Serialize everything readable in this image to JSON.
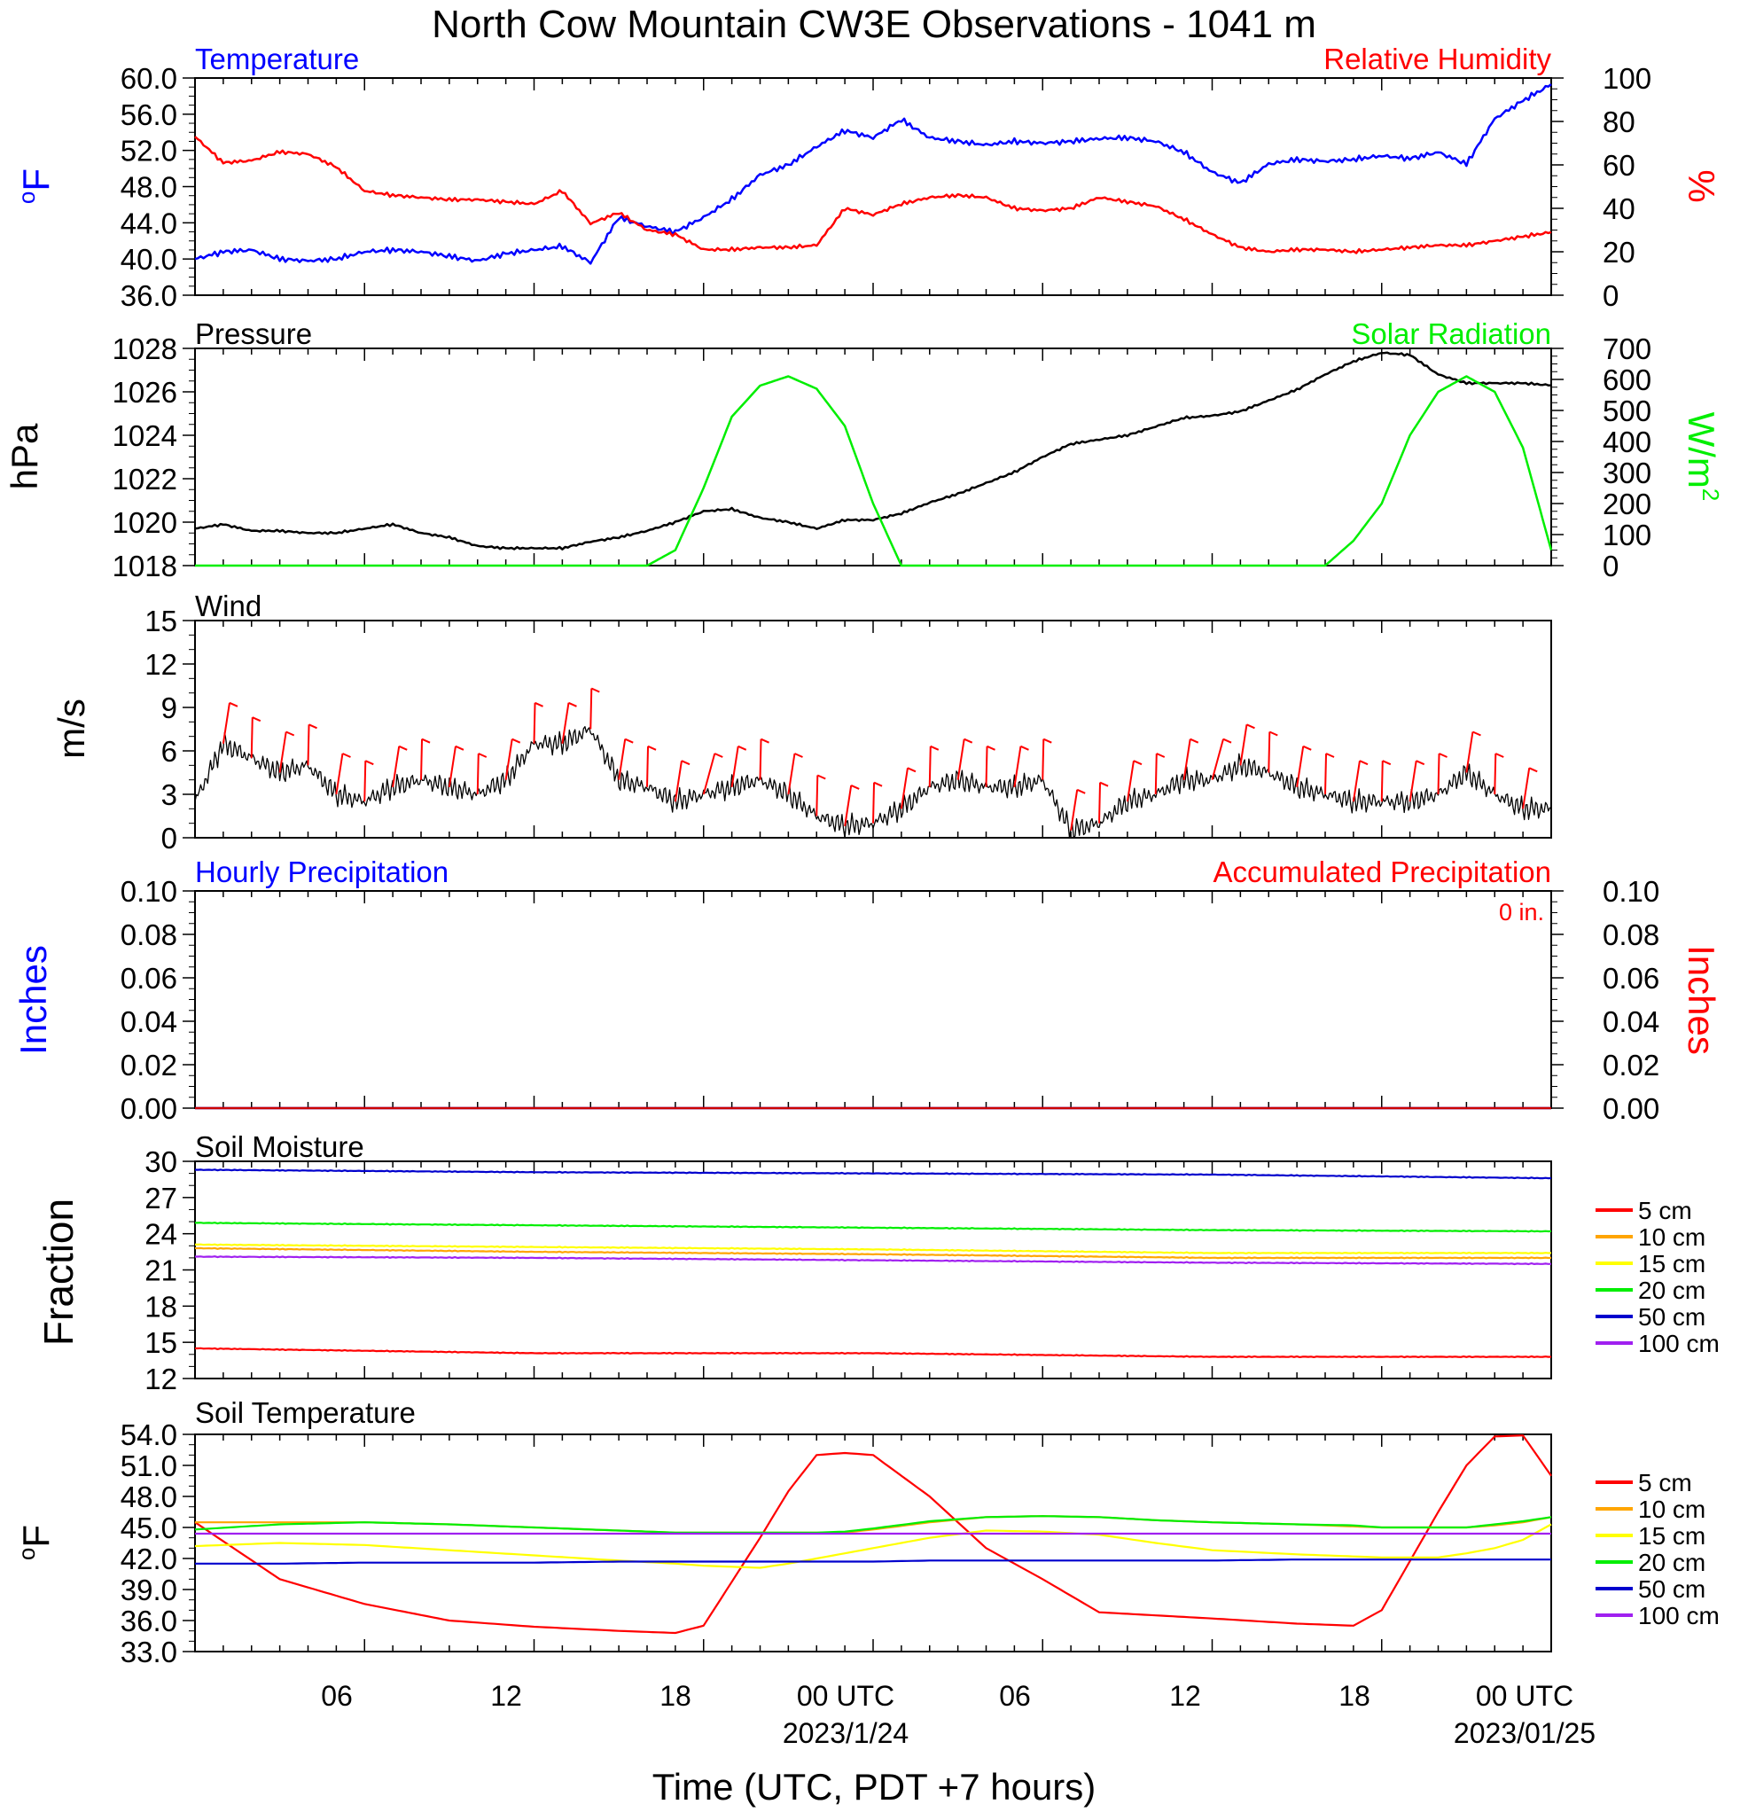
{
  "title": "North Cow Mountain CW3E Observations - 1041 m",
  "x_axis": {
    "label": "Time (UTC, PDT +7 hours)",
    "ticks": [
      "06",
      "12",
      "18",
      "00 UTC",
      "06",
      "12",
      "18",
      "00 UTC"
    ],
    "dates": [
      "2023/1/24",
      "2023/01/25"
    ]
  },
  "colors": {
    "blue": "#0000ff",
    "red": "#ff0000",
    "green": "#00ee00",
    "black": "#000000",
    "orange": "#ffa500",
    "yellow": "#ffff00",
    "purple": "#a020f0",
    "navy": "#0000cd"
  },
  "panels": {
    "temp_rh": {
      "title_left": "Temperature",
      "title_right": "Relative Humidity",
      "ylabel_left": "oF",
      "ylabel_right": "%",
      "left_ticks": [
        "60.0",
        "56.0",
        "52.0",
        "48.0",
        "44.0",
        "40.0",
        "36.0"
      ],
      "right_ticks": [
        "100",
        "80",
        "60",
        "40",
        "20",
        "0"
      ]
    },
    "pressure_solar": {
      "title_left": "Pressure",
      "title_right": "Solar Radiation",
      "ylabel_left": "hPa",
      "ylabel_right": "W/m2",
      "left_ticks": [
        "1028",
        "1026",
        "1024",
        "1022",
        "1020",
        "1018"
      ],
      "right_ticks": [
        "700",
        "600",
        "500",
        "400",
        "300",
        "200",
        "100",
        "0"
      ]
    },
    "wind": {
      "title_left": "Wind",
      "ylabel_left": "m/s",
      "left_ticks": [
        "15",
        "12",
        "9",
        "6",
        "3",
        "0"
      ]
    },
    "precip": {
      "title_left": "Hourly Precipitation",
      "title_right": "Accumulated Precipitation",
      "annotation": "0 in.",
      "ylabel_left": "Inches",
      "ylabel_right": "Inches",
      "left_ticks": [
        "0.10",
        "0.08",
        "0.06",
        "0.04",
        "0.02",
        "0.00"
      ],
      "right_ticks": [
        "0.10",
        "0.08",
        "0.06",
        "0.04",
        "0.02",
        "0.00"
      ]
    },
    "soil_moisture": {
      "title_left": "Soil Moisture",
      "ylabel_left": "Fraction",
      "left_ticks": [
        "30",
        "27",
        "24",
        "21",
        "18",
        "15",
        "12"
      ],
      "legend": [
        "5 cm",
        "10 cm",
        "15 cm",
        "20 cm",
        "50 cm",
        "100 cm"
      ]
    },
    "soil_temp": {
      "title_left": "Soil Temperature",
      "ylabel_left": "oF",
      "left_ticks": [
        "54.0",
        "51.0",
        "48.0",
        "45.0",
        "42.0",
        "39.0",
        "36.0",
        "33.0"
      ],
      "legend": [
        "5 cm",
        "10 cm",
        "15 cm",
        "20 cm",
        "50 cm",
        "100 cm"
      ]
    }
  },
  "chart_data": [
    {
      "type": "line",
      "title": "Temperature / Relative Humidity",
      "x_hours": [
        0,
        1,
        2,
        3,
        4,
        5,
        6,
        7,
        8,
        9,
        10,
        11,
        12,
        13,
        14,
        15,
        16,
        17,
        18,
        19,
        20,
        21,
        22,
        23,
        24,
        25,
        26,
        27,
        28,
        29,
        30,
        31,
        32,
        33,
        34,
        35,
        36,
        37,
        38,
        39,
        40,
        41,
        42,
        43,
        44,
        45,
        46,
        47,
        48
      ],
      "ylim_left": [
        36,
        60
      ],
      "ylim_right": [
        0,
        100
      ],
      "series": [
        {
          "name": "Temperature",
          "axis": "left",
          "unit": "F",
          "values": [
            40.0,
            40.8,
            41.0,
            40.0,
            39.8,
            40.0,
            40.8,
            41.0,
            40.8,
            40.3,
            39.8,
            40.6,
            41.0,
            41.4,
            39.6,
            44.6,
            43.6,
            43.0,
            44.6,
            46.6,
            49.3,
            50.4,
            52.4,
            54.2,
            53.4,
            55.4,
            53.4,
            53.0,
            52.6,
            53.0,
            52.8,
            53.0,
            53.3,
            53.4,
            53.0,
            51.8,
            49.6,
            48.4,
            50.5,
            51.0,
            50.8,
            51.0,
            51.4,
            51.1,
            51.8,
            50.5,
            55.5,
            57.5,
            59.3
          ]
        },
        {
          "name": "Relative Humidity",
          "axis": "right",
          "unit": "%",
          "values": [
            73,
            61,
            62,
            66,
            65,
            59,
            48,
            46,
            45,
            44,
            44,
            43,
            42,
            48,
            33,
            38,
            30,
            28,
            21,
            21,
            22,
            22,
            23,
            40,
            37,
            42,
            45,
            46,
            45,
            40,
            39,
            40,
            45,
            43,
            41,
            35,
            28,
            22,
            20,
            21,
            21,
            20,
            21,
            22,
            23,
            23,
            25,
            27,
            29
          ]
        }
      ]
    },
    {
      "type": "line",
      "title": "Pressure / Solar Radiation",
      "x_hours": [
        0,
        1,
        2,
        3,
        4,
        5,
        6,
        7,
        8,
        9,
        10,
        11,
        12,
        13,
        14,
        15,
        16,
        17,
        18,
        19,
        20,
        21,
        22,
        23,
        24,
        25,
        26,
        27,
        28,
        29,
        30,
        31,
        32,
        33,
        34,
        35,
        36,
        37,
        38,
        39,
        40,
        41,
        42,
        43,
        44,
        45,
        46,
        47,
        48
      ],
      "ylim_left": [
        1018,
        1028
      ],
      "ylim_right": [
        0,
        700
      ],
      "series": [
        {
          "name": "Pressure",
          "axis": "left",
          "unit": "hPa",
          "values": [
            1019.7,
            1019.9,
            1019.6,
            1019.6,
            1019.5,
            1019.5,
            1019.7,
            1019.9,
            1019.5,
            1019.3,
            1018.9,
            1018.8,
            1018.8,
            1018.8,
            1019.1,
            1019.3,
            1019.6,
            1020.0,
            1020.5,
            1020.6,
            1020.2,
            1020.0,
            1019.7,
            1020.1,
            1020.1,
            1020.4,
            1020.9,
            1021.3,
            1021.8,
            1022.3,
            1023.0,
            1023.6,
            1023.8,
            1024.0,
            1024.4,
            1024.8,
            1024.9,
            1025.1,
            1025.6,
            1026.1,
            1026.8,
            1027.4,
            1027.8,
            1027.7,
            1026.8,
            1026.4,
            1026.4,
            1026.4,
            1026.3
          ]
        },
        {
          "name": "Solar Radiation",
          "axis": "right",
          "unit": "W/m2",
          "values": [
            0,
            0,
            0,
            0,
            0,
            0,
            0,
            0,
            0,
            0,
            0,
            0,
            0,
            0,
            0,
            0,
            0,
            50,
            250,
            480,
            580,
            610,
            570,
            450,
            200,
            0,
            0,
            0,
            0,
            0,
            0,
            0,
            0,
            0,
            0,
            0,
            0,
            0,
            0,
            0,
            0,
            80,
            200,
            420,
            560,
            610,
            560,
            380,
            50
          ]
        }
      ]
    },
    {
      "type": "line",
      "title": "Wind",
      "x_hours": [
        0,
        1,
        2,
        3,
        4,
        5,
        6,
        7,
        8,
        9,
        10,
        11,
        12,
        13,
        14,
        15,
        16,
        17,
        18,
        19,
        20,
        21,
        22,
        23,
        24,
        25,
        26,
        27,
        28,
        29,
        30,
        31,
        32,
        33,
        34,
        35,
        36,
        37,
        38,
        39,
        40,
        41,
        42,
        43,
        44,
        45,
        46,
        47,
        48
      ],
      "ylim": [
        0,
        15
      ],
      "series": [
        {
          "name": "Wind speed",
          "unit": "m/s",
          "values": [
            2.5,
            6.5,
            5.5,
            4.5,
            5.0,
            3.0,
            2.5,
            3.5,
            4.0,
            3.5,
            3.0,
            4.0,
            6.5,
            6.5,
            7.5,
            4.0,
            3.5,
            2.5,
            3.0,
            3.5,
            4.0,
            3.0,
            1.5,
            0.8,
            1.0,
            2.0,
            3.5,
            4.0,
            3.5,
            3.5,
            4.0,
            0.5,
            1.0,
            2.5,
            3.0,
            4.0,
            4.0,
            5.0,
            4.5,
            3.5,
            3.0,
            2.5,
            2.5,
            2.5,
            3.0,
            4.5,
            3.0,
            2.0,
            2.0
          ]
        }
      ]
    },
    {
      "type": "line",
      "title": "Hourly / Accumulated Precipitation",
      "x_hours": [
        0,
        48
      ],
      "ylim": [
        0,
        0.1
      ],
      "series": [
        {
          "name": "Hourly Precipitation",
          "unit": "in",
          "values": [
            0,
            0
          ]
        },
        {
          "name": "Accumulated Precipitation",
          "unit": "in",
          "values": [
            0,
            0
          ]
        }
      ]
    },
    {
      "type": "line",
      "title": "Soil Moisture",
      "x_hours": [
        0,
        12,
        24,
        36,
        48
      ],
      "ylim": [
        12,
        30
      ],
      "series": [
        {
          "name": "5 cm",
          "values": [
            14.5,
            14.1,
            14.1,
            13.8,
            13.8
          ]
        },
        {
          "name": "10 cm",
          "values": [
            22.8,
            22.5,
            22.3,
            22.0,
            22.0
          ]
        },
        {
          "name": "15 cm",
          "values": [
            23.1,
            22.9,
            22.7,
            22.4,
            22.4
          ]
        },
        {
          "name": "20 cm",
          "values": [
            24.9,
            24.7,
            24.5,
            24.3,
            24.2
          ]
        },
        {
          "name": "50 cm",
          "values": [
            29.3,
            29.1,
            29.0,
            28.9,
            28.6
          ]
        },
        {
          "name": "100 cm",
          "values": [
            22.1,
            22.0,
            21.8,
            21.6,
            21.5
          ]
        }
      ]
    },
    {
      "type": "line",
      "title": "Soil Temperature",
      "x_hours": [
        0,
        3,
        6,
        9,
        12,
        15,
        17,
        18,
        20,
        21,
        22,
        23,
        24,
        26,
        28,
        30,
        32,
        34,
        36,
        39,
        41,
        42,
        44,
        45,
        46,
        47,
        48
      ],
      "ylim": [
        33,
        54
      ],
      "series": [
        {
          "name": "5 cm",
          "values": [
            45.5,
            40.0,
            37.6,
            36.0,
            35.4,
            35.0,
            34.8,
            35.5,
            44.0,
            48.5,
            52.0,
            52.2,
            52.0,
            48.0,
            43.0,
            40.0,
            36.8,
            36.5,
            36.2,
            35.7,
            35.5,
            37.0,
            46.5,
            51.0,
            53.8,
            53.9,
            50.0
          ]
        },
        {
          "name": "10 cm",
          "values": [
            45.5,
            45.5,
            45.5,
            45.3,
            45.0,
            44.7,
            44.5,
            44.5,
            44.5,
            44.5,
            44.5,
            44.5,
            44.8,
            45.5,
            46.0,
            46.1,
            46.0,
            45.7,
            45.5,
            45.3,
            45.1,
            45.0,
            45.0,
            45.0,
            45.2,
            45.5,
            46.0
          ]
        },
        {
          "name": "15 cm",
          "values": [
            43.2,
            43.5,
            43.3,
            42.8,
            42.3,
            41.8,
            41.5,
            41.3,
            41.1,
            41.5,
            42.0,
            42.5,
            43.0,
            44.0,
            44.7,
            44.6,
            44.3,
            43.5,
            42.8,
            42.4,
            42.2,
            42.1,
            42.1,
            42.5,
            43.0,
            43.8,
            45.3
          ]
        },
        {
          "name": "20 cm",
          "values": [
            44.8,
            45.3,
            45.5,
            45.3,
            45.0,
            44.7,
            44.5,
            44.5,
            44.5,
            44.5,
            44.5,
            44.6,
            44.9,
            45.6,
            46.0,
            46.1,
            46.0,
            45.7,
            45.5,
            45.3,
            45.2,
            45.0,
            45.0,
            45.0,
            45.3,
            45.6,
            46.0
          ]
        },
        {
          "name": "50 cm",
          "values": [
            41.5,
            41.5,
            41.6,
            41.6,
            41.6,
            41.7,
            41.7,
            41.7,
            41.7,
            41.7,
            41.7,
            41.7,
            41.7,
            41.8,
            41.8,
            41.8,
            41.8,
            41.8,
            41.8,
            41.9,
            41.9,
            41.9,
            41.9,
            41.9,
            41.9,
            41.9,
            41.9
          ]
        },
        {
          "name": "100 cm",
          "values": [
            44.4,
            44.4,
            44.4,
            44.4,
            44.4,
            44.4,
            44.4,
            44.4,
            44.4,
            44.4,
            44.4,
            44.4,
            44.4,
            44.4,
            44.4,
            44.4,
            44.4,
            44.4,
            44.4,
            44.4,
            44.4,
            44.4,
            44.4,
            44.4,
            44.4,
            44.4,
            44.4
          ]
        }
      ]
    }
  ]
}
